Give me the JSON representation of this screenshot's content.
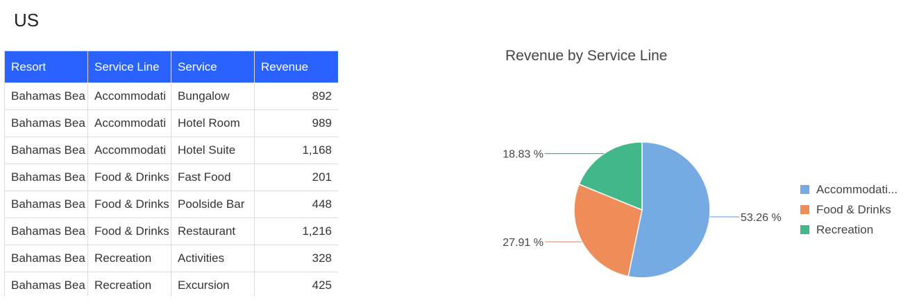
{
  "page": {
    "title": "US"
  },
  "table": {
    "columns": [
      "Resort",
      "Service Line",
      "Service",
      "Revenue"
    ],
    "rows": [
      [
        "Bahamas Bea",
        "Accommodati",
        "Bungalow",
        "892"
      ],
      [
        "Bahamas Bea",
        "Accommodati",
        "Hotel Room",
        "989"
      ],
      [
        "Bahamas Bea",
        "Accommodati",
        "Hotel Suite",
        "1,168"
      ],
      [
        "Bahamas Bea",
        "Food & Drinks",
        "Fast Food",
        "201"
      ],
      [
        "Bahamas Bea",
        "Food & Drinks",
        "Poolside Bar",
        "448"
      ],
      [
        "Bahamas Bea",
        "Food & Drinks",
        "Restaurant",
        "1,216"
      ],
      [
        "Bahamas Bea",
        "Recreation",
        "Activities",
        "328"
      ],
      [
        "Bahamas Bea",
        "Recreation",
        "Excursion",
        "425"
      ]
    ]
  },
  "chart_data": {
    "type": "pie",
    "title": "Revenue by Service Line",
    "categories": [
      "Accommodati...",
      "Food & Drinks",
      "Recreation"
    ],
    "values": [
      53.26,
      27.91,
      18.83
    ],
    "labels": [
      "53.26 %",
      "27.91 %",
      "18.83 %"
    ],
    "colors": [
      "#76aae3",
      "#ee8c5a",
      "#41b78a"
    ],
    "legend_position": "right"
  }
}
